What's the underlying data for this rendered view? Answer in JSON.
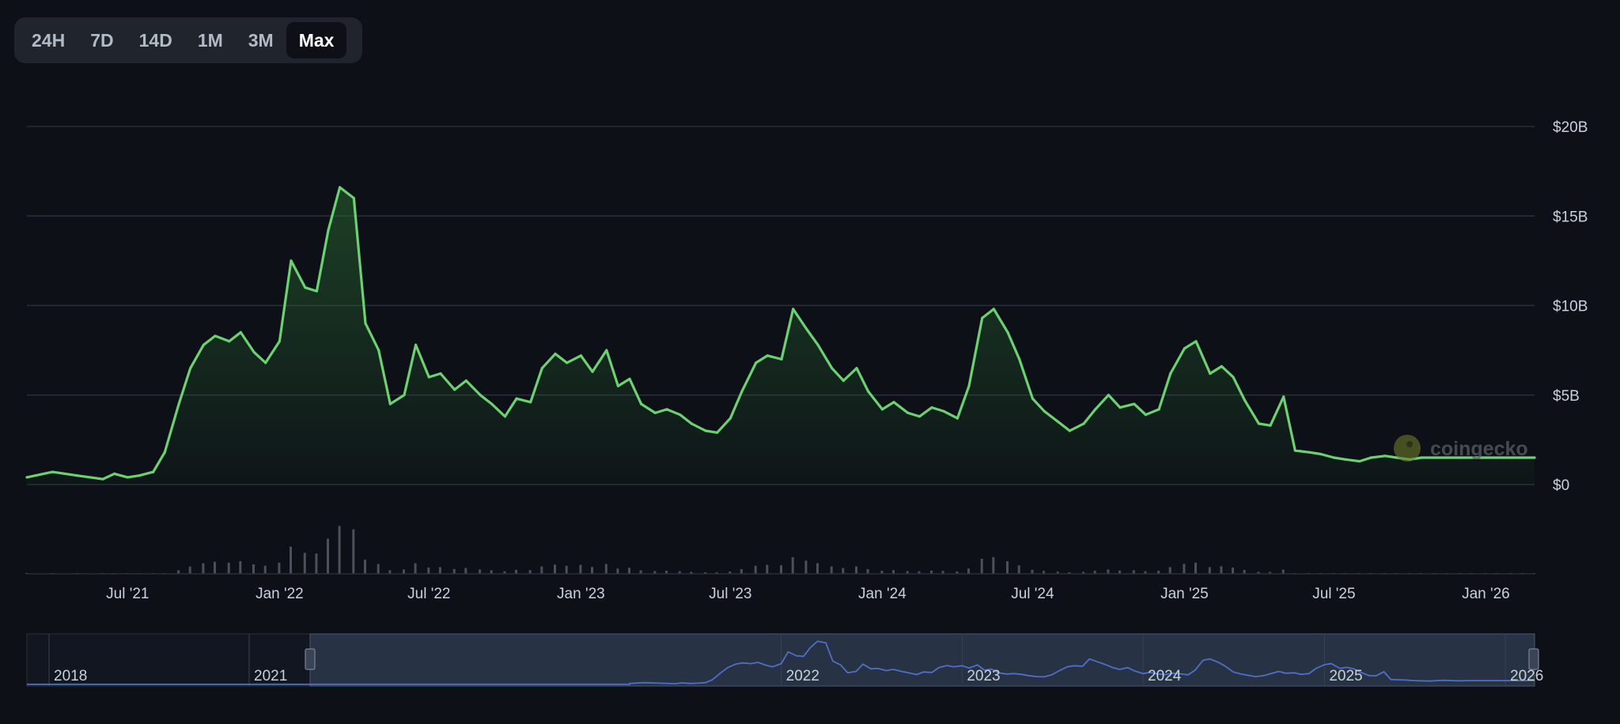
{
  "range_tabs": [
    {
      "label": "24H",
      "active": false
    },
    {
      "label": "7D",
      "active": false
    },
    {
      "label": "14D",
      "active": false
    },
    {
      "label": "1M",
      "active": false
    },
    {
      "label": "3M",
      "active": false
    },
    {
      "label": "Max",
      "active": true
    }
  ],
  "watermark": "coingecko",
  "colors": {
    "background": "#0d1117",
    "line": "#6dd072",
    "grid": "#2a2f37",
    "navigator_line": "#4e6fc4",
    "navigator_mask": "#2a3447",
    "volume": "#4b5059"
  },
  "chart_data": {
    "type": "area",
    "ylim": [
      0,
      20
    ],
    "y_unit": "billions USD",
    "y_ticks": [
      "$0",
      "$5B",
      "$10B",
      "$15B",
      "$20B"
    ],
    "x_ticks": [
      "Jul '21",
      "Jan '22",
      "Jul '22",
      "Jan '23",
      "Jul '23",
      "Jan '24",
      "Jul '24",
      "Jan '25",
      "Jul '25",
      "Jan '26"
    ],
    "grid": true,
    "series": [
      {
        "x": [
          "2021-03-01",
          "2021-04-01",
          "2021-05-01",
          "2021-06-01",
          "2021-06-15",
          "2021-07-01",
          "2021-07-15",
          "2021-08-01",
          "2021-08-15",
          "2021-09-01",
          "2021-09-15",
          "2021-10-01",
          "2021-10-15",
          "2021-11-01",
          "2021-11-15",
          "2021-12-01",
          "2021-12-15",
          "2022-01-01",
          "2022-01-15",
          "2022-02-01",
          "2022-02-15",
          "2022-03-01",
          "2022-03-15",
          "2022-04-01",
          "2022-04-15",
          "2022-05-01",
          "2022-05-15",
          "2022-06-01",
          "2022-06-15",
          "2022-07-01",
          "2022-07-15",
          "2022-08-01",
          "2022-08-15",
          "2022-09-01",
          "2022-09-15",
          "2022-10-01",
          "2022-10-15",
          "2022-11-01",
          "2022-11-15",
          "2022-12-01",
          "2022-12-15",
          "2023-01-01",
          "2023-01-15",
          "2023-02-01",
          "2023-02-15",
          "2023-03-01",
          "2023-03-15",
          "2023-04-01",
          "2023-04-15",
          "2023-05-01",
          "2023-05-15",
          "2023-06-01",
          "2023-06-15",
          "2023-07-01",
          "2023-07-15",
          "2023-08-01",
          "2023-08-15",
          "2023-09-01",
          "2023-09-15",
          "2023-10-01",
          "2023-10-15",
          "2023-11-01",
          "2023-11-15",
          "2023-12-01",
          "2023-12-15",
          "2024-01-01",
          "2024-01-15",
          "2024-02-01",
          "2024-02-15",
          "2024-03-01",
          "2024-03-15",
          "2024-04-01",
          "2024-04-15",
          "2024-05-01",
          "2024-05-15",
          "2024-06-01",
          "2024-06-15",
          "2024-07-01",
          "2024-07-15",
          "2024-08-01",
          "2024-08-15",
          "2024-09-01",
          "2024-09-15",
          "2024-10-01",
          "2024-10-15",
          "2024-11-01",
          "2024-11-15",
          "2024-12-01",
          "2024-12-15",
          "2025-01-01",
          "2025-01-15",
          "2025-02-01",
          "2025-02-15",
          "2025-03-01",
          "2025-03-15",
          "2025-04-01",
          "2025-04-15",
          "2025-05-01",
          "2025-05-15",
          "2025-06-01",
          "2025-06-15",
          "2025-07-01",
          "2025-07-15",
          "2025-08-01",
          "2025-08-15",
          "2025-09-01",
          "2025-09-15",
          "2025-10-01",
          "2025-10-15",
          "2025-11-01",
          "2025-11-15",
          "2025-12-01",
          "2025-12-15",
          "2026-01-01",
          "2026-01-15",
          "2026-02-01",
          "2026-02-15",
          "2026-03-01"
        ],
        "values": [
          0.4,
          0.7,
          0.5,
          0.3,
          0.6,
          0.4,
          0.5,
          0.7,
          1.8,
          4.5,
          6.5,
          7.8,
          8.3,
          8.0,
          8.5,
          7.4,
          6.8,
          8.0,
          12.5,
          11.0,
          10.8,
          14.2,
          16.6,
          16.0,
          9.0,
          7.5,
          4.5,
          5.0,
          7.8,
          6.0,
          6.2,
          5.3,
          5.8,
          5.0,
          4.5,
          3.8,
          4.8,
          4.6,
          6.5,
          7.3,
          6.8,
          7.2,
          6.3,
          7.5,
          5.5,
          5.9,
          4.5,
          4.0,
          4.2,
          3.9,
          3.4,
          3.0,
          2.9,
          3.7,
          5.2,
          6.8,
          7.2,
          7.0,
          9.8,
          8.7,
          7.8,
          6.5,
          5.8,
          6.5,
          5.2,
          4.2,
          4.6,
          4.0,
          3.8,
          4.3,
          4.1,
          3.7,
          5.5,
          9.3,
          9.8,
          8.5,
          7.0,
          4.8,
          4.1,
          3.5,
          3.0,
          3.4,
          4.2,
          5.0,
          4.3,
          4.5,
          3.9,
          4.2,
          6.2,
          7.6,
          8.0,
          6.2,
          6.6,
          6.0,
          4.7,
          3.4,
          3.3,
          4.9,
          1.9,
          1.8,
          1.7,
          1.5,
          1.4,
          1.3,
          1.5,
          1.6,
          1.5,
          1.4,
          1.5,
          1.5,
          1.5,
          1.5,
          1.5,
          1.5,
          1.5,
          1.5,
          1.5,
          1.5
        ]
      }
    ]
  },
  "navigator": {
    "year_labels": [
      "2018",
      "2021",
      "2022",
      "2023",
      "2024",
      "2025",
      "2026"
    ]
  }
}
